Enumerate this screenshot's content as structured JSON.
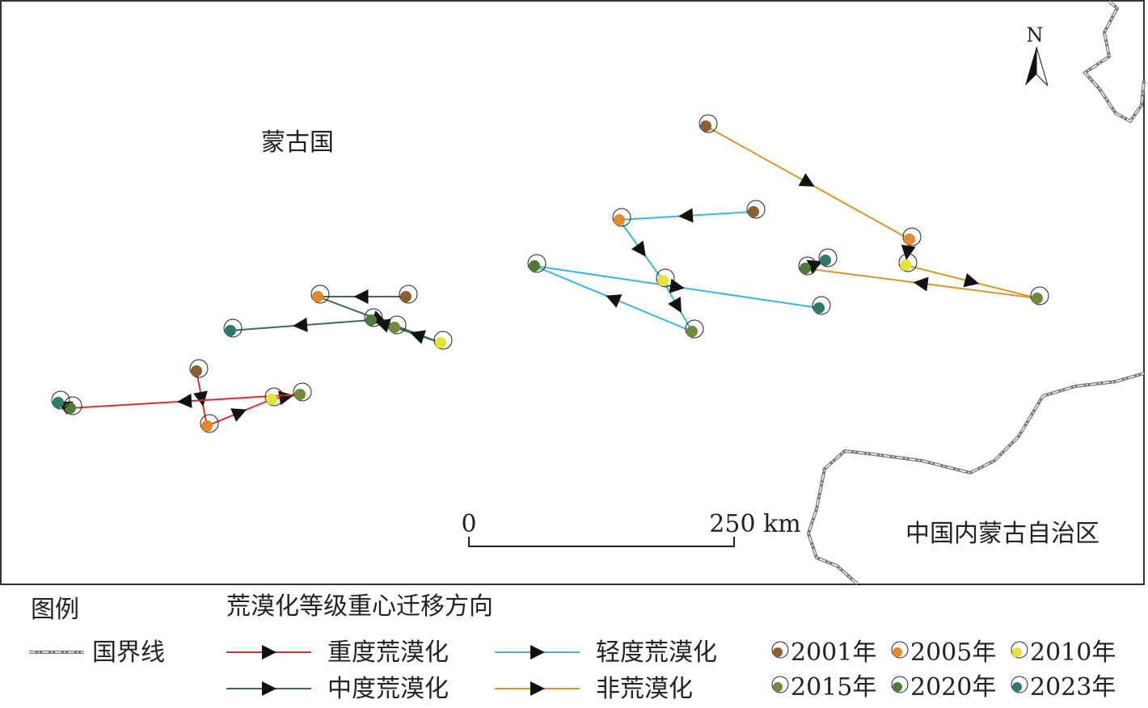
{
  "map": {
    "labels": {
      "country": "蒙古国",
      "region": "中国内蒙古自治区",
      "north": "N"
    },
    "scale_bar": {
      "start": "0",
      "end": "250 km"
    },
    "legend": {
      "title": "图例",
      "boundary": "国界线",
      "subtitle": "荒漠化等级重心迁移方向",
      "lines": [
        {
          "name": "重度荒漠化",
          "color": "#d7312e"
        },
        {
          "name": "中度荒漠化",
          "color": "#3e6b4c"
        },
        {
          "name": "轻度荒漠化",
          "color": "#3cb6de"
        },
        {
          "name": "非荒漠化",
          "color": "#d9952f"
        }
      ],
      "years": [
        {
          "name": "2001年",
          "color": "#8b5e34"
        },
        {
          "name": "2005年",
          "color": "#e08a2a"
        },
        {
          "name": "2010年",
          "color": "#e3e33a"
        },
        {
          "name": "2015年",
          "color": "#6f8c3a"
        },
        {
          "name": "2020年",
          "color": "#4f7a3a"
        },
        {
          "name": "2023年",
          "color": "#2e7a6e"
        }
      ]
    }
  }
}
